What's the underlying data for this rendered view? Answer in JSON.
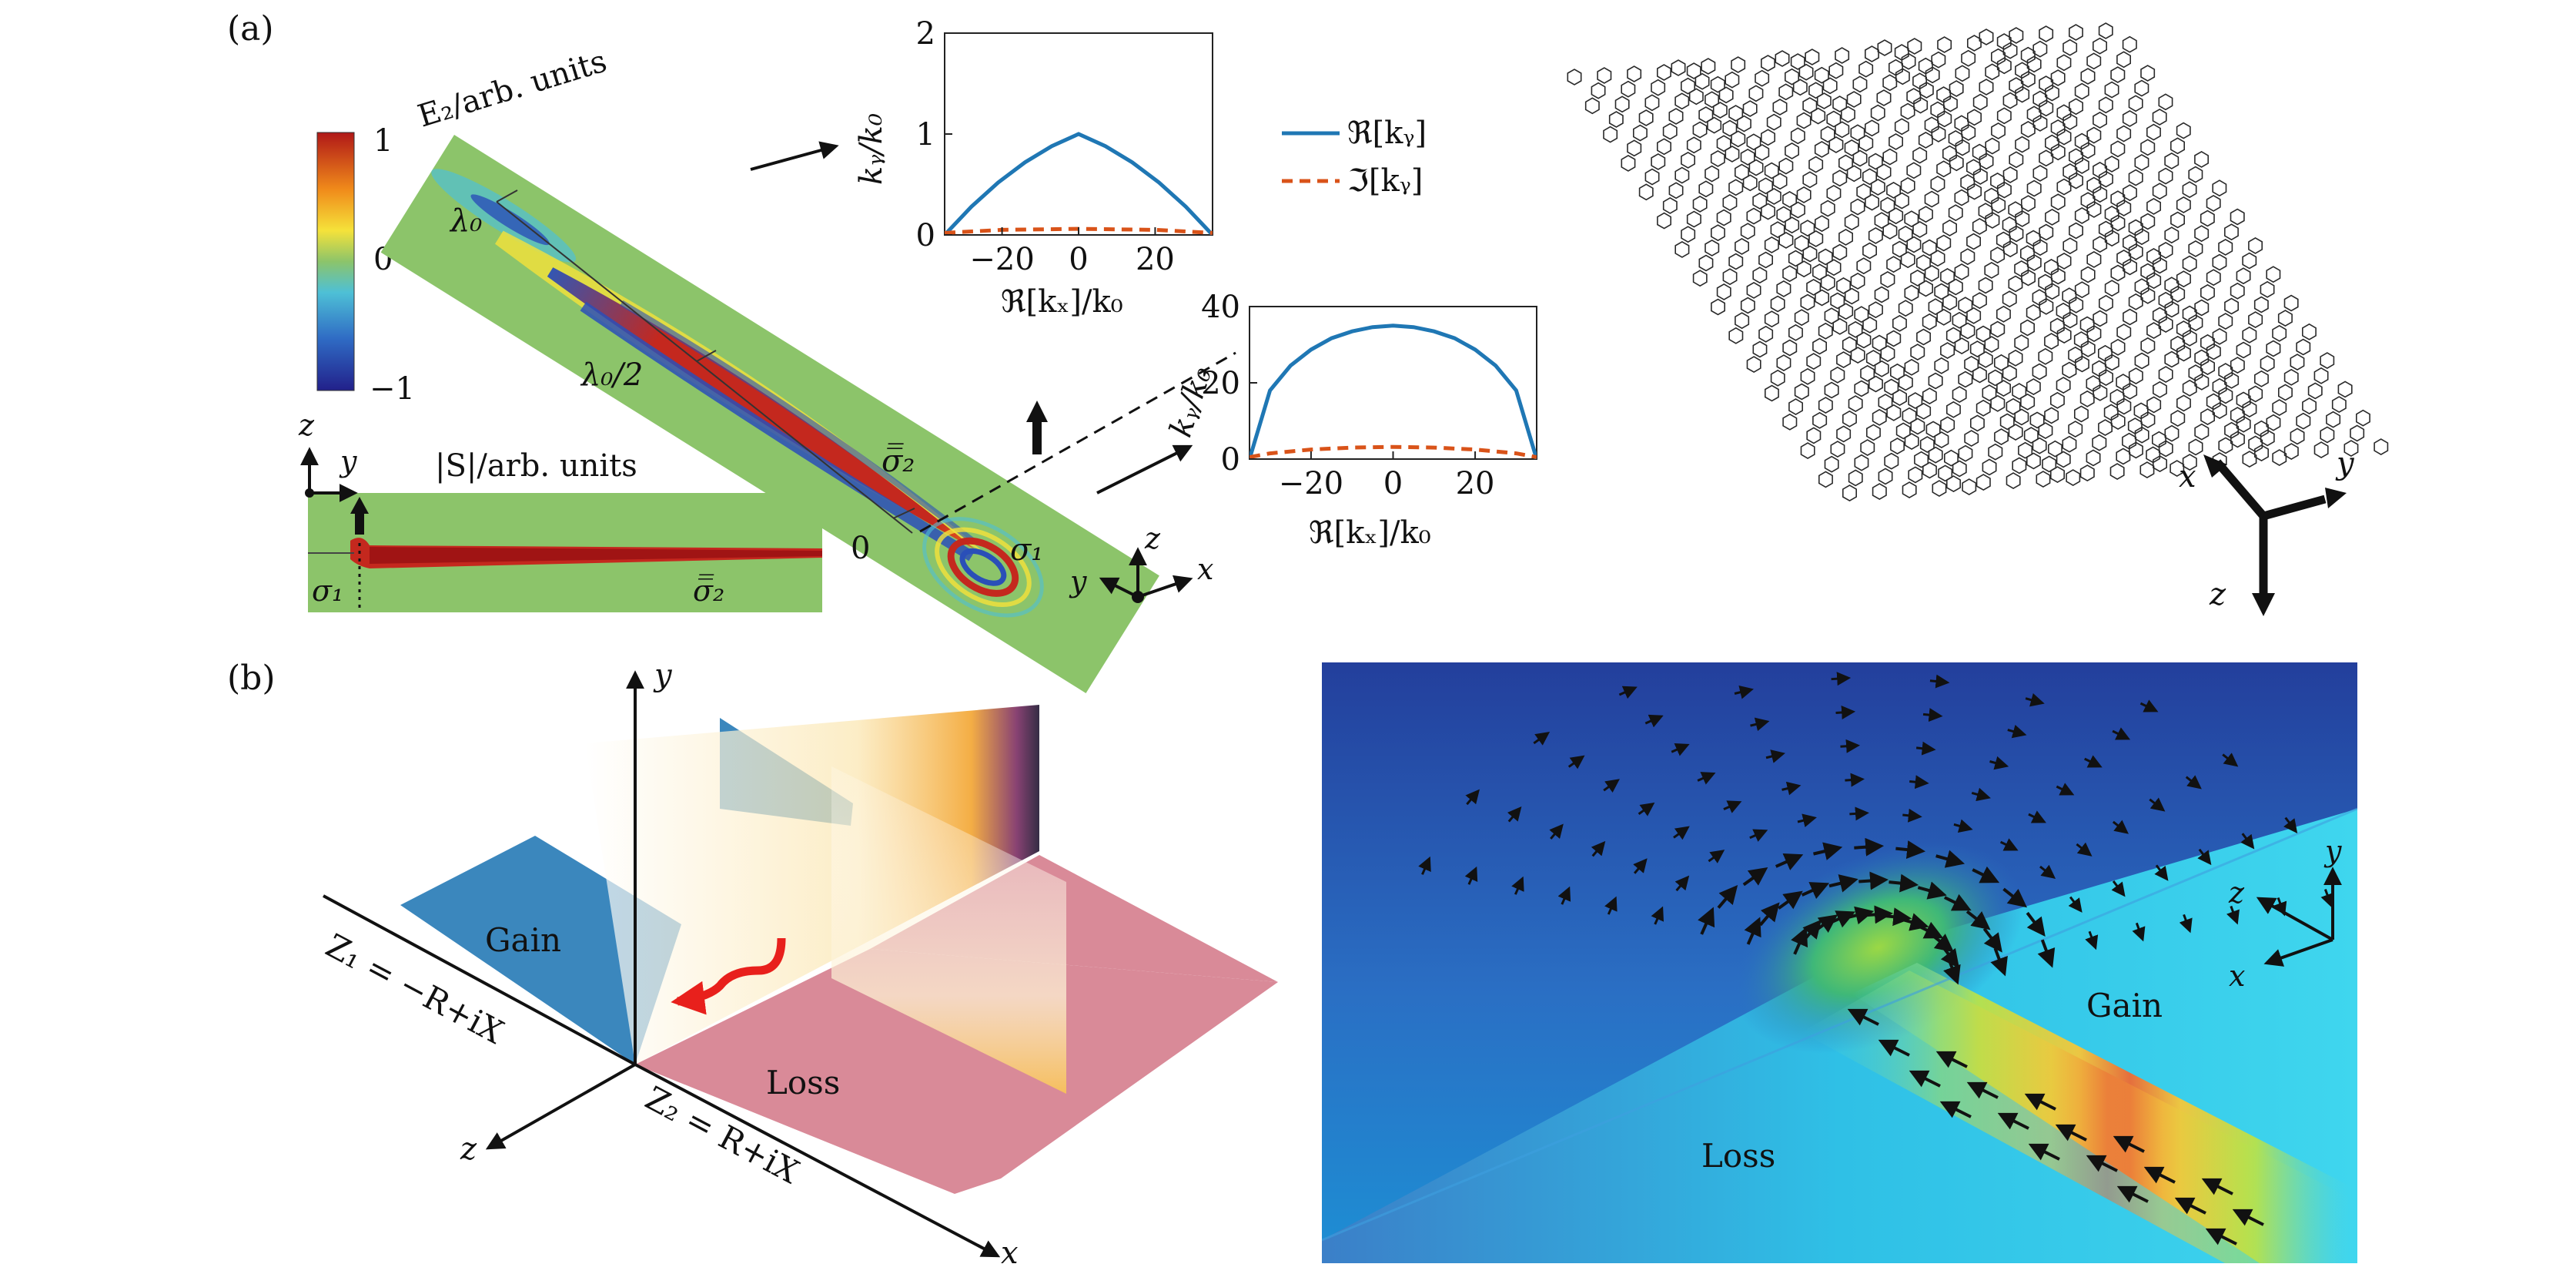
{
  "panels": {
    "a": {
      "label": "(a)"
    },
    "b": {
      "label": "(b)"
    }
  },
  "panel_a": {
    "field_title": "E₂/arb. units",
    "colorbar": {
      "max": "1",
      "mid": "0",
      "min": "−1"
    },
    "distance_labels": {
      "lambda0": "λ₀",
      "half": "λ₀/2",
      "zero": "0"
    },
    "sigma1": "σ₁",
    "sigma2": "σ̅̅₂",
    "axes_triad": {
      "x": "x",
      "y": "y",
      "z": "z"
    },
    "inset": {
      "title": "|S|/arb. units",
      "axes": {
        "z": "z",
        "y": "y"
      },
      "sigma1": "σ₁",
      "sigma2": "σ̅̅₂"
    },
    "legend": {
      "real": "ℜ[kᵧ]",
      "imag": "ℑ[kᵧ]",
      "real_color": "#1f77b4",
      "imag_color": "#d95319"
    },
    "lattice_axes": {
      "x": "x",
      "y": "y",
      "z": "z"
    }
  },
  "chart_data": [
    {
      "type": "line",
      "name": "upper dispersion",
      "xlabel": "ℜ[kₓ]/k₀",
      "ylabel": "kᵧ/k₀",
      "xlim": [
        -35,
        35
      ],
      "ylim": [
        0,
        2
      ],
      "xticks": [
        "−20",
        "0",
        "20"
      ],
      "yticks": [
        "0",
        "1",
        "2"
      ],
      "series": [
        {
          "name": "ℜ[kᵧ]",
          "style": "solid",
          "color": "#1f77b4",
          "x": [
            -35,
            -28,
            -21,
            -14,
            -7,
            0,
            7,
            14,
            21,
            28,
            35
          ],
          "y": [
            0,
            0.28,
            0.52,
            0.72,
            0.88,
            1.0,
            0.88,
            0.72,
            0.52,
            0.28,
            0
          ]
        },
        {
          "name": "ℑ[kᵧ]",
          "style": "dashed",
          "color": "#d95319",
          "x": [
            -35,
            -20,
            0,
            20,
            35
          ],
          "y": [
            0.02,
            0.05,
            0.06,
            0.05,
            0.02
          ]
        }
      ]
    },
    {
      "type": "line",
      "name": "lower dispersion",
      "xlabel": "ℜ[kₓ]/k₀",
      "ylabel": "kᵧ/k₀",
      "xlim": [
        -35,
        35
      ],
      "ylim": [
        0,
        40
      ],
      "xticks": [
        "−20",
        "0",
        "20"
      ],
      "yticks": [
        "0",
        "20",
        "40"
      ],
      "series": [
        {
          "name": "ℜ[kᵧ]",
          "style": "solid",
          "color": "#1f77b4",
          "x": [
            -35,
            -30,
            -25,
            -20,
            -15,
            -10,
            -5,
            0,
            5,
            10,
            15,
            20,
            25,
            30,
            35
          ],
          "y": [
            0,
            18.0,
            24.5,
            28.7,
            31.7,
            33.5,
            34.6,
            35,
            34.6,
            33.5,
            31.7,
            28.7,
            24.5,
            18.0,
            0
          ]
        },
        {
          "name": "ℑ[kᵧ]",
          "style": "dashed",
          "color": "#d95319",
          "x": [
            -35,
            -30,
            -20,
            -10,
            0,
            10,
            20,
            30,
            35
          ],
          "y": [
            0.5,
            1.5,
            2.5,
            3.0,
            3.2,
            3.0,
            2.5,
            1.5,
            0.5
          ]
        }
      ]
    }
  ],
  "panel_b": {
    "axes": {
      "x": "x",
      "y": "y",
      "z": "z"
    },
    "gain": "Gain",
    "loss": "Loss",
    "z1": "Z₁ = −R+iX",
    "z2": "Z₂ = R+iX",
    "gain_color": "#3b87bd",
    "loss_color": "#d98a98"
  },
  "panel_b_sim": {
    "gain": "Gain",
    "loss": "Loss",
    "axes": {
      "x": "x",
      "y": "y",
      "z": "z"
    }
  }
}
